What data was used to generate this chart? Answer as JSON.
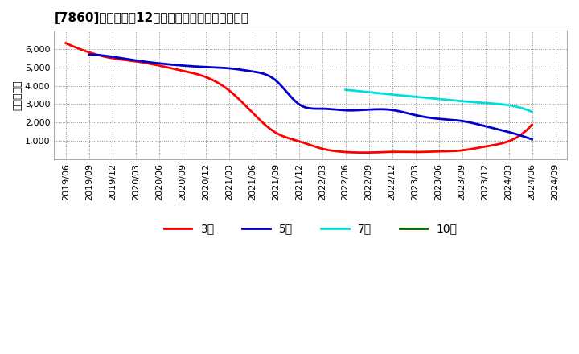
{
  "title": "[7860]　経常利益12か月移動合計の平均値の推移",
  "ylabel": "（百万円）",
  "background_color": "#ffffff",
  "plot_bg_color": "#ffffff",
  "grid_color": "#888888",
  "ylim": [
    0,
    7000
  ],
  "yticks": [
    1000,
    2000,
    3000,
    4000,
    5000,
    6000
  ],
  "series": {
    "3y": {
      "color": "#ff0000",
      "label": "3年",
      "x": [
        0,
        1,
        2,
        3,
        4,
        5,
        6,
        7,
        8,
        9,
        10,
        11,
        12,
        13,
        14,
        15,
        16,
        17,
        18,
        19,
        20
      ],
      "y": [
        6320,
        5820,
        5500,
        5330,
        5100,
        4820,
        4480,
        3750,
        2550,
        1450,
        980,
        570,
        390,
        360,
        400,
        390,
        420,
        480,
        690,
        980,
        1880
      ]
    },
    "5y": {
      "color": "#0000cc",
      "label": "5年",
      "x": [
        1,
        2,
        3,
        4,
        5,
        6,
        7,
        8,
        9,
        10,
        11,
        12,
        13,
        14,
        15,
        16,
        17,
        18,
        19,
        20
      ],
      "y": [
        5700,
        5580,
        5380,
        5220,
        5100,
        5020,
        4950,
        4780,
        4300,
        3000,
        2750,
        2660,
        2700,
        2680,
        2400,
        2200,
        2080,
        1800,
        1480,
        1080
      ]
    },
    "7y": {
      "color": "#00dddd",
      "label": "7年",
      "x": [
        12,
        13,
        14,
        15,
        16,
        17,
        18,
        19,
        20
      ],
      "y": [
        3780,
        3650,
        3520,
        3400,
        3280,
        3160,
        3060,
        2940,
        2580
      ]
    },
    "10y": {
      "color": "#006600",
      "label": "10年",
      "x": [],
      "y": []
    }
  },
  "xtick_labels": [
    "2019/06",
    "2019/09",
    "2019/12",
    "2020/03",
    "2020/06",
    "2020/09",
    "2020/12",
    "2021/03",
    "2021/06",
    "2021/09",
    "2021/12",
    "2022/03",
    "2022/06",
    "2022/09",
    "2022/12",
    "2023/03",
    "2023/06",
    "2023/09",
    "2023/12",
    "2024/03",
    "2024/06",
    "2024/09"
  ],
  "title_fontsize": 11,
  "tick_fontsize": 8,
  "legend_fontsize": 10
}
